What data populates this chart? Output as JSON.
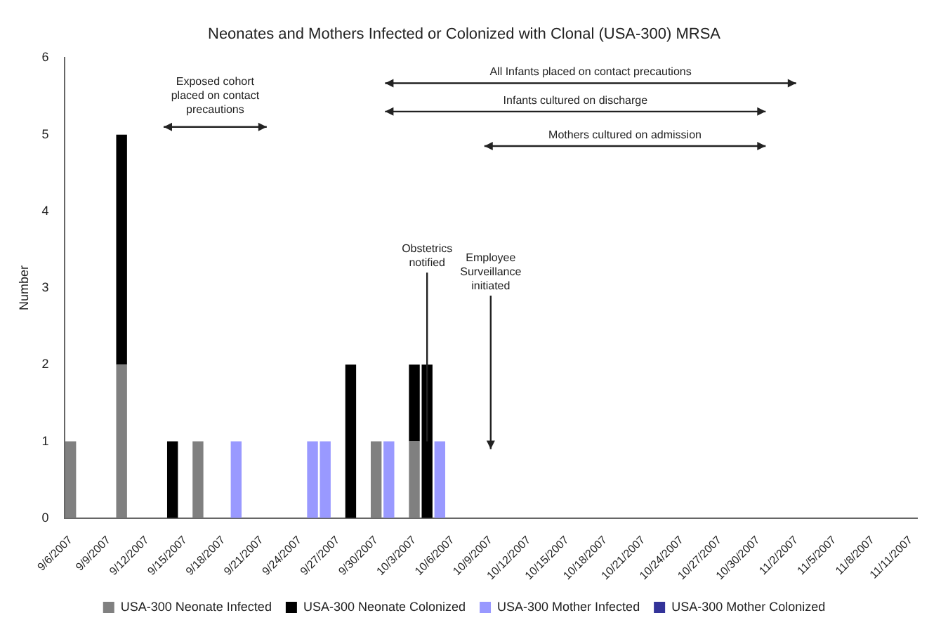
{
  "chart_data": {
    "type": "bar",
    "title": "Neonates and Mothers Infected or Colonized with Clonal (USA-300) MRSA",
    "ylabel": "Number",
    "categories": [
      "9/6/2007",
      null,
      null,
      "9/9/2007",
      null,
      null,
      "9/12/2007",
      null,
      null,
      "9/15/2007",
      null,
      null,
      "9/18/2007",
      null,
      null,
      "9/21/2007",
      null,
      null,
      "9/24/2007",
      null,
      null,
      "9/27/2007",
      null,
      null,
      "9/30/2007",
      null,
      null,
      "10/3/2007",
      null,
      null,
      "10/6/2007",
      null,
      null,
      "10/9/2007",
      null,
      null,
      "10/12/2007",
      null,
      null,
      "10/15/2007",
      null,
      null,
      "10/18/2007",
      null,
      null,
      "10/21/2007",
      null,
      null,
      "10/24/2007",
      null,
      null,
      "10/27/2007",
      null,
      null,
      "10/30/2007",
      null,
      null,
      "11/2/2007",
      null,
      null,
      "11/5/2007",
      null,
      null,
      "11/8/2007",
      null,
      null,
      "11/11/2007"
    ],
    "stacked": true,
    "series": [
      {
        "name": "USA-300 Neonate Infected",
        "color": "#808080",
        "values": [
          1,
          null,
          null,
          null,
          2,
          null,
          null,
          null,
          null,
          null,
          1,
          null,
          null,
          null,
          null,
          null,
          null,
          null,
          null,
          null,
          null,
          null,
          null,
          null,
          1,
          null,
          null,
          1,
          null,
          null,
          null,
          null,
          null,
          null,
          null,
          null,
          null,
          null,
          null,
          null,
          null,
          null,
          null,
          null,
          null,
          null,
          null,
          null,
          null,
          null,
          null,
          null,
          null,
          null,
          null,
          null,
          null,
          null,
          null,
          null,
          null,
          null,
          null,
          null,
          null,
          null,
          null
        ]
      },
      {
        "name": "USA-300 Neonate Colonized",
        "color": "#000000",
        "values": [
          null,
          null,
          null,
          null,
          3,
          null,
          null,
          null,
          1,
          null,
          null,
          null,
          null,
          null,
          null,
          null,
          null,
          null,
          null,
          null,
          null,
          null,
          2,
          null,
          null,
          null,
          null,
          1,
          2,
          null,
          null,
          null,
          null,
          null,
          null,
          null,
          null,
          null,
          null,
          null,
          null,
          null,
          null,
          null,
          null,
          null,
          null,
          null,
          null,
          null,
          null,
          null,
          null,
          null,
          null,
          null,
          null,
          null,
          null,
          null,
          null,
          null,
          null,
          null,
          null,
          null,
          null
        ]
      },
      {
        "name": "USA-300 Mother Infected",
        "color": "#9999ff",
        "values": [
          null,
          null,
          null,
          null,
          null,
          null,
          null,
          null,
          null,
          null,
          null,
          null,
          null,
          1,
          null,
          null,
          null,
          null,
          null,
          1,
          1,
          null,
          null,
          null,
          null,
          1,
          null,
          null,
          null,
          1,
          null,
          null,
          null,
          null,
          null,
          null,
          null,
          null,
          null,
          null,
          null,
          null,
          null,
          null,
          null,
          null,
          null,
          null,
          null,
          null,
          null,
          null,
          null,
          null,
          null,
          null,
          null,
          null,
          null,
          null,
          null,
          null,
          null,
          null,
          null,
          null,
          null
        ]
      },
      {
        "name": "USA-300 Mother Colonized",
        "color": "#333399",
        "values": [
          null,
          null,
          null,
          null,
          null,
          null,
          null,
          null,
          null,
          null,
          null,
          null,
          null,
          null,
          null,
          null,
          null,
          null,
          null,
          null,
          null,
          null,
          null,
          null,
          null,
          null,
          null,
          null,
          null,
          null,
          null,
          null,
          null,
          null,
          null,
          null,
          null,
          null,
          null,
          null,
          null,
          null,
          null,
          null,
          null,
          null,
          null,
          null,
          null,
          null,
          null,
          null,
          null,
          null,
          null,
          null,
          null,
          null,
          null,
          null,
          null,
          null,
          null,
          null,
          null,
          null,
          null
        ]
      }
    ],
    "ylim": [
      0,
      6
    ],
    "yticks": [
      0,
      1,
      2,
      3,
      4,
      5,
      6
    ],
    "grid": false,
    "legend": "bottom",
    "annotations": [
      "Exposed cohort placed on contact precautions",
      "All Infants placed on contact precautions",
      "Infants cultured on discharge",
      "Mothers cultured on admission",
      {
        "text": "Obstetrics notified",
        "y": 1
      },
      "Employee Surveillance initiated"
    ]
  }
}
